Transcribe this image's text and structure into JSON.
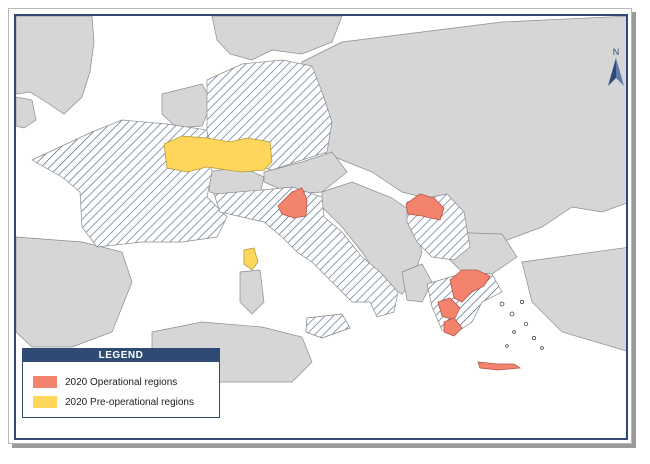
{
  "legend": {
    "title": "LEGEND",
    "items": [
      {
        "label": "2020 Operational regions",
        "color": "#f4836d"
      },
      {
        "label": "2020 Pre-operational regions",
        "color": "#ffd65c"
      }
    ]
  },
  "north_arrow": {
    "label": "N"
  },
  "colors": {
    "land": "#d6d6d6",
    "border": "#8c8c8c",
    "hatched": "#2f4a75",
    "sea": "#ffffff",
    "frame": "#2f4a75"
  }
}
